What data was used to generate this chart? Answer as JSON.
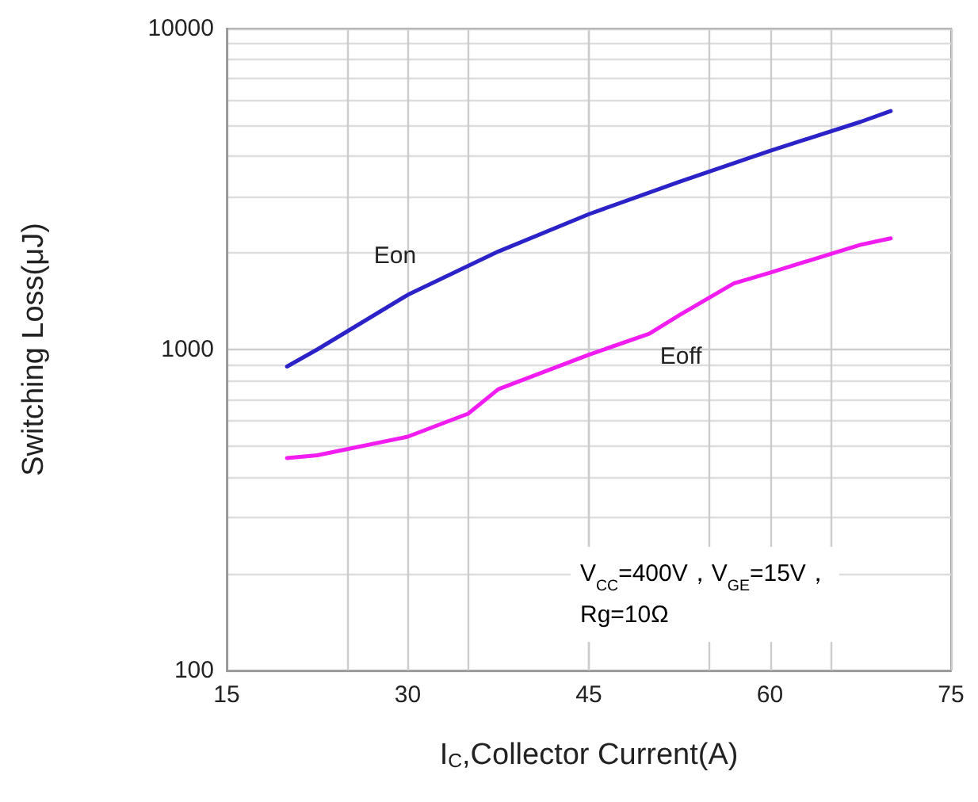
{
  "chart_data": {
    "type": "line",
    "xlabel": "I$_{C}$,Collector Current(A)",
    "ylabel": "Switching Loss(μJ)",
    "xlim": [
      15,
      75
    ],
    "xticks": [
      15,
      30,
      45,
      60,
      75
    ],
    "ylim": [
      100,
      10000
    ],
    "yticks": [
      100,
      1000,
      10000
    ],
    "log": "y",
    "grid": true,
    "marker": "none",
    "line_style": "solid",
    "legend": false,
    "series": [
      {
        "name": "Eon",
        "color": "#2b22c8",
        "x": [
          20,
          22.5,
          30,
          37.5,
          45,
          52.5,
          60,
          67.5,
          70
        ],
        "values": [
          885,
          1000,
          1480,
          2020,
          2640,
          3330,
          4160,
          5120,
          5530
        ]
      },
      {
        "name": "Eoff",
        "color": "#f01cf0",
        "x": [
          20,
          22.5,
          30,
          35,
          37.5,
          45,
          50,
          52.5,
          57,
          60,
          67.5,
          70
        ],
        "values": [
          459,
          468,
          535,
          631,
          752,
          963,
          1120,
          1280,
          1607,
          1735,
          2120,
          2220
        ]
      }
    ],
    "annotations": [
      "V$_{CC}$=400V，V$_{GE}$=15V，\nRg=10Ω"
    ]
  }
}
